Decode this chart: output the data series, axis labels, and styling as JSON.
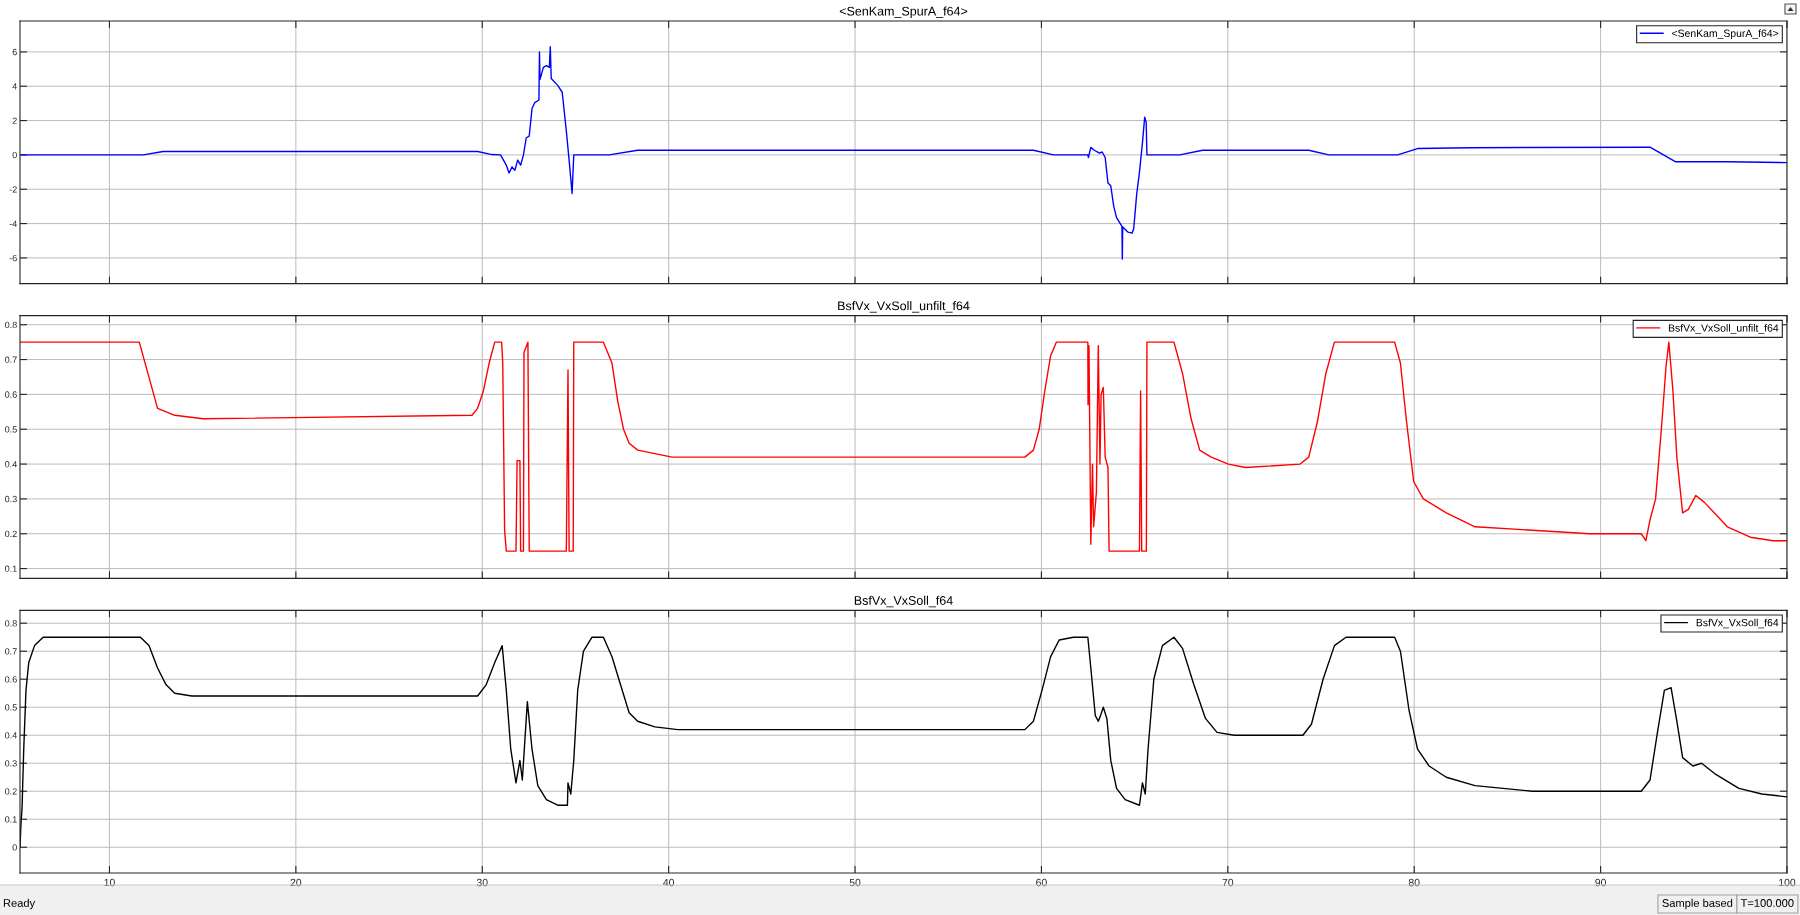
{
  "chart_data": [
    {
      "type": "line",
      "title": "<SenKam_SpurA_f64>",
      "xlim": [
        5.2,
        100
      ],
      "xticks": [
        10,
        20,
        30,
        40,
        50,
        60,
        70,
        80,
        90,
        100
      ],
      "ylim": [
        -7.5,
        7.8
      ],
      "yticks": [
        -6,
        -4,
        -2,
        0,
        2,
        4,
        6
      ],
      "grid": true,
      "legend": "top right",
      "tick_labels": "y",
      "series": [
        {
          "name": "<SenKam_SpurA_f64>",
          "color": "#0000ff",
          "x": [
            5.2,
            11.81,
            12.88,
            29.75,
            30.52,
            30.98,
            31.29,
            31.44,
            31.6,
            31.75,
            31.9,
            32.06,
            32.21,
            32.36,
            32.52,
            32.67,
            32.82,
            33.04,
            33.07,
            33.1,
            33.28,
            33.44,
            33.6,
            33.65,
            33.7,
            34.05,
            34.29,
            34.51,
            34.66,
            34.82,
            34.91,
            36.81,
            38.34,
            59.57,
            60.65,
            62.49,
            62.52,
            62.65,
            62.8,
            62.95,
            63.11,
            63.26,
            63.42,
            63.57,
            63.72,
            63.88,
            64.03,
            64.32,
            64.34,
            64.36,
            64.65,
            64.86,
            64.95,
            65.11,
            65.26,
            65.42,
            65.54,
            65.62,
            65.66,
            67.42,
            68.65,
            74.34,
            75.42,
            79.11,
            80.18,
            83.0,
            92.65,
            94.03,
            96.8,
            100
          ],
          "values": [
            0,
            0,
            0.2,
            0.2,
            0.02,
            0,
            -0.6,
            -1.05,
            -0.7,
            -0.9,
            -0.3,
            -0.6,
            0,
            1.0,
            1.1,
            2.7,
            3.05,
            3.2,
            6.0,
            4.4,
            5.1,
            5.2,
            5.1,
            6.3,
            4.45,
            4.05,
            3.65,
            1.4,
            -0.3,
            -2.25,
            0,
            0,
            0.27,
            0.27,
            0,
            0,
            -0.15,
            0.44,
            0.3,
            0.2,
            0.1,
            0.17,
            -0.15,
            -1.64,
            -1.8,
            -3.0,
            -3.65,
            -4.16,
            -6.07,
            -4.2,
            -4.5,
            -4.56,
            -4.3,
            -2.3,
            -1.0,
            0.7,
            2.2,
            1.9,
            0,
            0,
            0.27,
            0.27,
            0,
            0,
            0.37,
            0.42,
            0.45,
            -0.4,
            -0.4,
            -0.45
          ]
        }
      ]
    },
    {
      "type": "line",
      "title": "BsfVx_VxSoll_unfilt_f64",
      "xlim": [
        5.2,
        100
      ],
      "xticks": [
        10,
        20,
        30,
        40,
        50,
        60,
        70,
        80,
        90,
        100
      ],
      "ylim": [
        0.072,
        0.826
      ],
      "yticks": [
        0.1,
        0.2,
        0.3,
        0.4,
        0.5,
        0.6,
        0.7,
        0.8
      ],
      "grid": true,
      "legend": "top right",
      "tick_labels": "y",
      "series": [
        {
          "name": "BsfVx_VxSoll_unfilt_f64",
          "color": "#ff0000",
          "x": [
            5.2,
            11.6,
            12.58,
            13.5,
            15.03,
            29.45,
            29.75,
            30.06,
            30.37,
            30.67,
            31.04,
            31.1,
            31.2,
            31.29,
            31.81,
            31.87,
            32.02,
            32.06,
            32.21,
            32.24,
            32.45,
            32.52,
            34.51,
            34.6,
            34.66,
            34.88,
            34.91,
            36.5,
            36.96,
            37.27,
            37.58,
            37.88,
            38.34,
            39.26,
            40.18,
            59.11,
            59.57,
            59.88,
            60.18,
            60.49,
            60.8,
            62.49,
            62.5,
            62.55,
            62.65,
            62.74,
            62.8,
            62.95,
            63.05,
            63.14,
            63.2,
            63.32,
            63.42,
            63.57,
            63.63,
            65.26,
            65.32,
            65.38,
            65.63,
            65.66,
            67.11,
            67.57,
            68.03,
            68.49,
            69.11,
            70.03,
            70.95,
            73.88,
            74.34,
            74.8,
            75.26,
            75.72,
            78.95,
            79.26,
            79.57,
            79.97,
            80.49,
            81.72,
            83.26,
            86.34,
            89.42,
            92.18,
            92.43,
            92.65,
            92.95,
            93.26,
            93.51,
            93.66,
            93.88,
            94.09,
            94.4,
            94.71,
            95.11,
            95.57,
            96.8,
            98.03,
            99.26,
            100
          ],
          "values": [
            0.75,
            0.75,
            0.56,
            0.54,
            0.53,
            0.54,
            0.56,
            0.61,
            0.69,
            0.75,
            0.75,
            0.69,
            0.21,
            0.15,
            0.15,
            0.41,
            0.41,
            0.15,
            0.15,
            0.72,
            0.75,
            0.15,
            0.15,
            0.67,
            0.15,
            0.15,
            0.75,
            0.75,
            0.69,
            0.58,
            0.5,
            0.46,
            0.44,
            0.43,
            0.42,
            0.42,
            0.44,
            0.5,
            0.61,
            0.71,
            0.75,
            0.75,
            0.57,
            0.74,
            0.17,
            0.4,
            0.22,
            0.32,
            0.74,
            0.4,
            0.6,
            0.62,
            0.42,
            0.39,
            0.15,
            0.15,
            0.61,
            0.15,
            0.15,
            0.75,
            0.75,
            0.66,
            0.53,
            0.44,
            0.42,
            0.4,
            0.39,
            0.4,
            0.42,
            0.52,
            0.66,
            0.75,
            0.75,
            0.69,
            0.53,
            0.35,
            0.3,
            0.26,
            0.22,
            0.21,
            0.2,
            0.2,
            0.18,
            0.24,
            0.3,
            0.5,
            0.68,
            0.75,
            0.61,
            0.42,
            0.26,
            0.27,
            0.31,
            0.29,
            0.22,
            0.19,
            0.18,
            0.18
          ]
        }
      ]
    },
    {
      "type": "line",
      "title": "BsfVx_VxSoll_f64",
      "xlim": [
        5.2,
        100
      ],
      "xticks": [
        10,
        20,
        30,
        40,
        50,
        60,
        70,
        80,
        90,
        100
      ],
      "ylim": [
        -0.092,
        0.846
      ],
      "yticks": [
        0,
        0.1,
        0.2,
        0.3,
        0.4,
        0.5,
        0.6,
        0.7,
        0.8
      ],
      "grid": true,
      "legend": "top right",
      "annotations": [
        "Ready",
        "Sample based",
        "T=100.000"
      ],
      "series": [
        {
          "name": "BsfVx_VxSoll_f64",
          "color": "#000000",
          "x": [
            5.2,
            5.25,
            5.31,
            5.4,
            5.52,
            5.67,
            5.98,
            6.44,
            11.66,
            12.12,
            12.58,
            13.04,
            13.5,
            14.42,
            15.95,
            29.75,
            30.21,
            30.67,
            31.07,
            31.29,
            31.53,
            31.81,
            32.02,
            32.15,
            32.42,
            32.67,
            32.98,
            33.44,
            34.05,
            34.57,
            34.6,
            34.75,
            34.91,
            35.12,
            35.43,
            35.89,
            36.5,
            36.96,
            37.42,
            37.88,
            38.34,
            39.26,
            40.49,
            59.11,
            59.57,
            60.03,
            60.49,
            60.95,
            61.72,
            62.49,
            62.65,
            62.89,
            63.05,
            63.17,
            63.32,
            63.51,
            63.72,
            64.03,
            64.49,
            65.26,
            65.42,
            65.57,
            65.72,
            66.03,
            66.49,
            67.11,
            67.57,
            68.18,
            68.8,
            69.42,
            70.34,
            71.57,
            74.03,
            74.49,
            75.11,
            75.72,
            76.34,
            78.95,
            79.26,
            79.72,
            80.18,
            80.8,
            81.72,
            83.26,
            86.34,
            92.18,
            92.65,
            93.05,
            93.42,
            93.78,
            94.09,
            94.4,
            94.95,
            95.42,
            96.18,
            97.42,
            98.65,
            100
          ],
          "values": [
            0,
            0.08,
            0.14,
            0.35,
            0.56,
            0.66,
            0.72,
            0.75,
            0.75,
            0.72,
            0.64,
            0.58,
            0.55,
            0.54,
            0.54,
            0.54,
            0.58,
            0.66,
            0.72,
            0.56,
            0.35,
            0.23,
            0.31,
            0.24,
            0.52,
            0.35,
            0.22,
            0.17,
            0.15,
            0.15,
            0.23,
            0.19,
            0.31,
            0.56,
            0.7,
            0.75,
            0.75,
            0.68,
            0.58,
            0.48,
            0.45,
            0.43,
            0.42,
            0.42,
            0.45,
            0.56,
            0.68,
            0.74,
            0.75,
            0.75,
            0.64,
            0.47,
            0.45,
            0.47,
            0.5,
            0.46,
            0.31,
            0.21,
            0.17,
            0.15,
            0.23,
            0.19,
            0.35,
            0.6,
            0.72,
            0.75,
            0.71,
            0.58,
            0.46,
            0.41,
            0.4,
            0.4,
            0.4,
            0.44,
            0.6,
            0.72,
            0.75,
            0.75,
            0.7,
            0.49,
            0.35,
            0.29,
            0.25,
            0.22,
            0.2,
            0.2,
            0.24,
            0.41,
            0.56,
            0.57,
            0.45,
            0.32,
            0.29,
            0.3,
            0.26,
            0.21,
            0.19,
            0.18
          ]
        }
      ]
    }
  ]
}
